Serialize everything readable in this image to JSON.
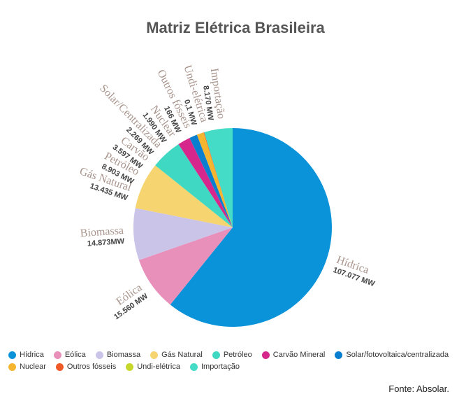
{
  "chart_data": {
    "type": "pie",
    "title": "Matriz Elétrica Brasileira",
    "source": "Fonte: Absolar.",
    "categories": [
      "Hídrica",
      "Eólica",
      "Biomassa",
      "Gás Natural",
      "Petróleo",
      "Carvão Mineral",
      "Solar/fotovoltaica/centralizada",
      "Nuclear",
      "Outros fósseis",
      "Undi-elétrica",
      "Importação"
    ],
    "slice_labels": [
      "Hídrica",
      "Eólica",
      "Biomassa",
      "Gás Natural",
      "Petróleo",
      "Carvão",
      "Solar/Centralizada",
      "Nuclear",
      "Outros fósseis",
      "Undi-elétrica",
      "Importação"
    ],
    "values": [
      107077,
      15560,
      14873,
      13435,
      8903,
      3597,
      2269,
      1990,
      166,
      0.1,
      8170
    ],
    "value_labels": [
      "107.077 MW",
      "15.560 MW",
      "14.873MW",
      "13.435 MW",
      "8.903 MW",
      "3.597 MW",
      "2.269 MW",
      "1.990 MW",
      "166 MW",
      "0,1 MW",
      "8.170 MW"
    ],
    "colors": [
      "#0a93d9",
      "#e88fba",
      "#cbc4e9",
      "#f6d470",
      "#3fd8c2",
      "#d6288c",
      "#0b7fcf",
      "#f5b52f",
      "#f05a28",
      "#c6d62b",
      "#44dcc6"
    ]
  }
}
